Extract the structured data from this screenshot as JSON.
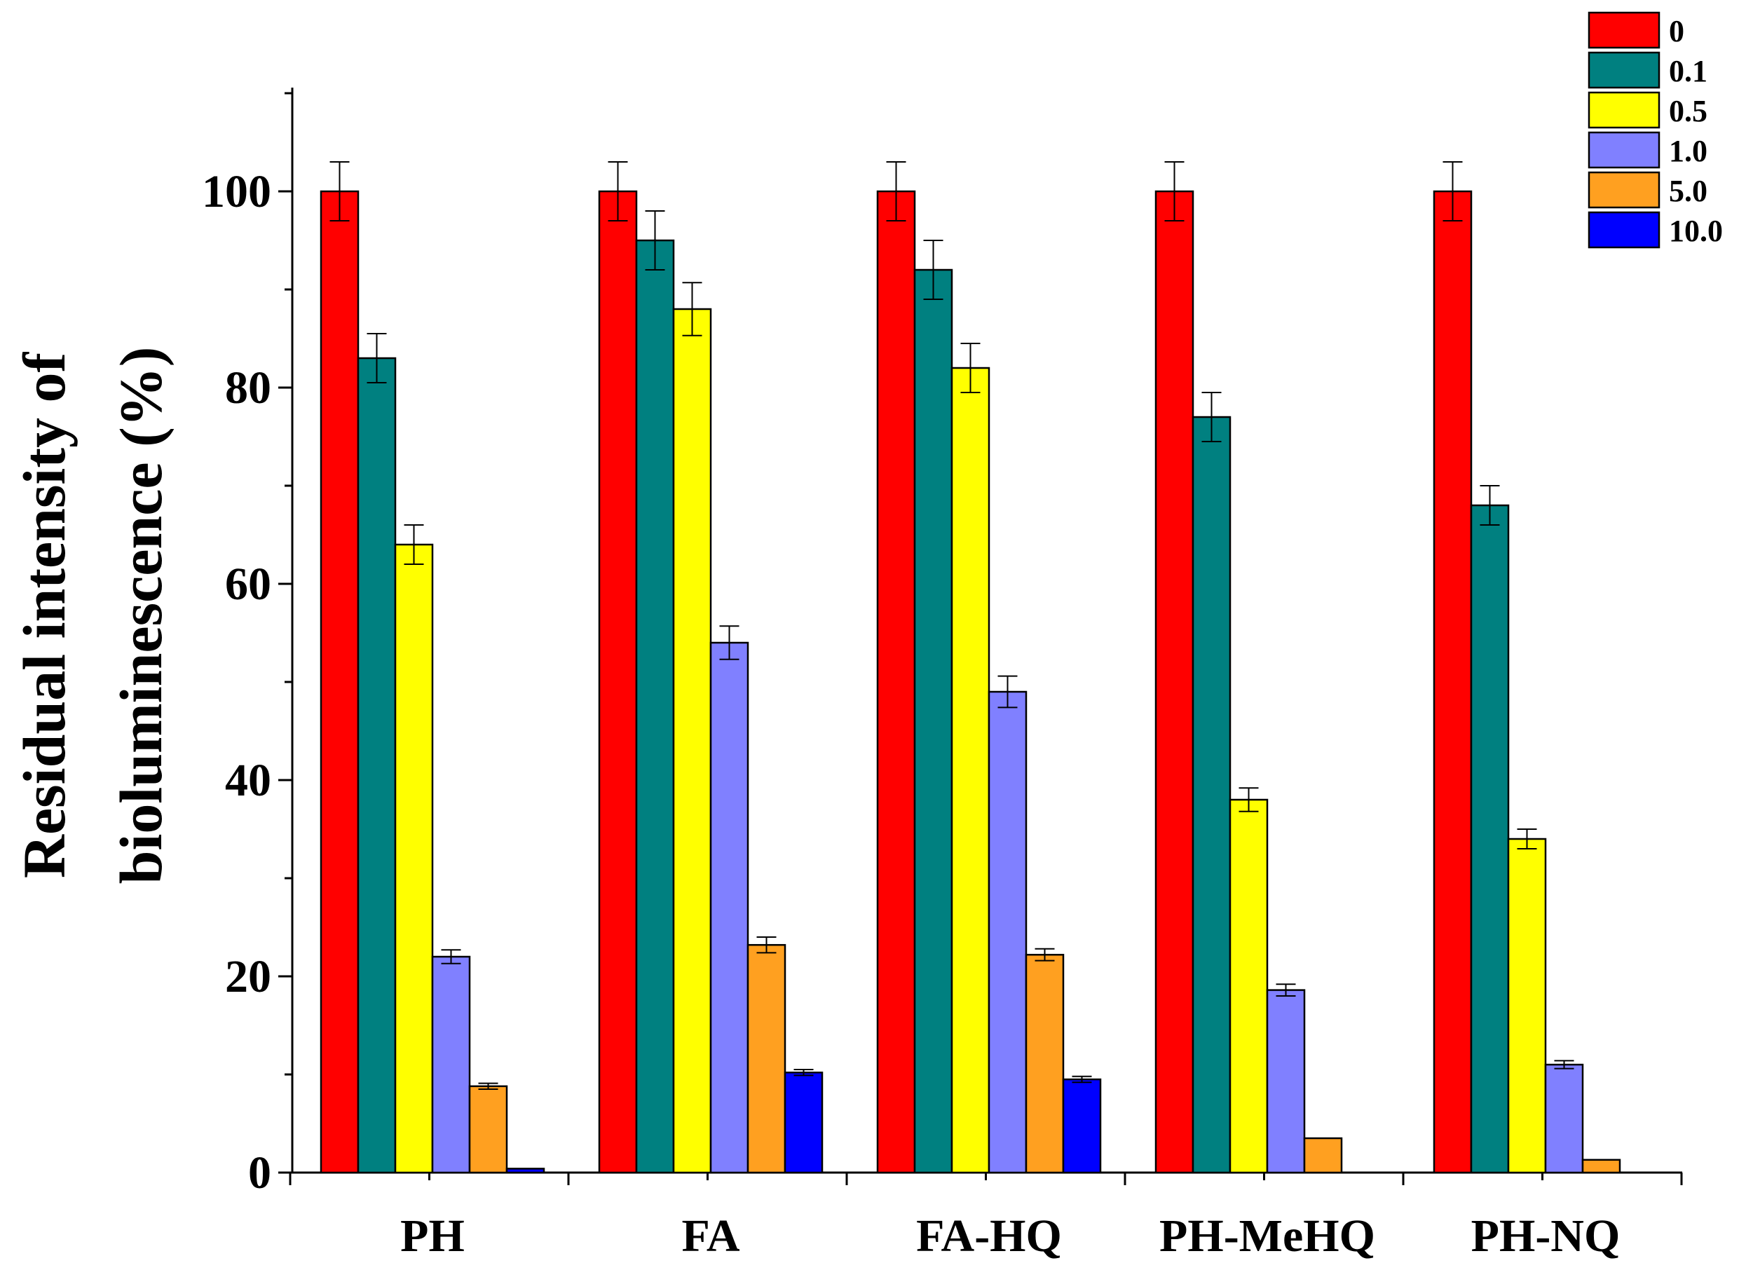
{
  "chart_data": {
    "type": "bar",
    "title": "",
    "xlabel": "",
    "ylabel_lines": [
      "Residual intensity of",
      "bioluminescence (%)"
    ],
    "ylim": [
      0,
      110
    ],
    "yticks": [
      0,
      20,
      40,
      60,
      80,
      100
    ],
    "categories": [
      "PH",
      "FA",
      "FA-HQ",
      "PH-MeHQ",
      "PH-NQ"
    ],
    "legend_position": "top-right",
    "series": [
      {
        "name": "0",
        "color": "#ff0000",
        "values": [
          100,
          100,
          100,
          100,
          100
        ],
        "errors": [
          3,
          3,
          3,
          3,
          3
        ]
      },
      {
        "name": "0.1",
        "color": "#008080",
        "values": [
          83,
          95,
          92,
          77,
          68
        ],
        "errors": [
          2.5,
          3,
          3,
          2.5,
          2
        ]
      },
      {
        "name": "0.5",
        "color": "#ffff00",
        "values": [
          64,
          88,
          82,
          38,
          34
        ],
        "errors": [
          2,
          2.7,
          2.5,
          1.2,
          1
        ]
      },
      {
        "name": "1.0",
        "color": "#8080ff",
        "values": [
          22,
          54,
          49,
          18.6,
          11
        ],
        "errors": [
          0.7,
          1.7,
          1.6,
          0.6,
          0.4
        ]
      },
      {
        "name": "5.0",
        "color": "#ffa020",
        "values": [
          8.8,
          23.2,
          22.2,
          3.5,
          1.3
        ],
        "errors": [
          0.3,
          0.8,
          0.6,
          0,
          0
        ]
      },
      {
        "name": "10.0",
        "color": "#0000ff",
        "values": [
          0.4,
          10.2,
          9.5,
          0,
          0
        ],
        "errors": [
          0,
          0.3,
          0.3,
          0,
          0
        ]
      }
    ]
  }
}
